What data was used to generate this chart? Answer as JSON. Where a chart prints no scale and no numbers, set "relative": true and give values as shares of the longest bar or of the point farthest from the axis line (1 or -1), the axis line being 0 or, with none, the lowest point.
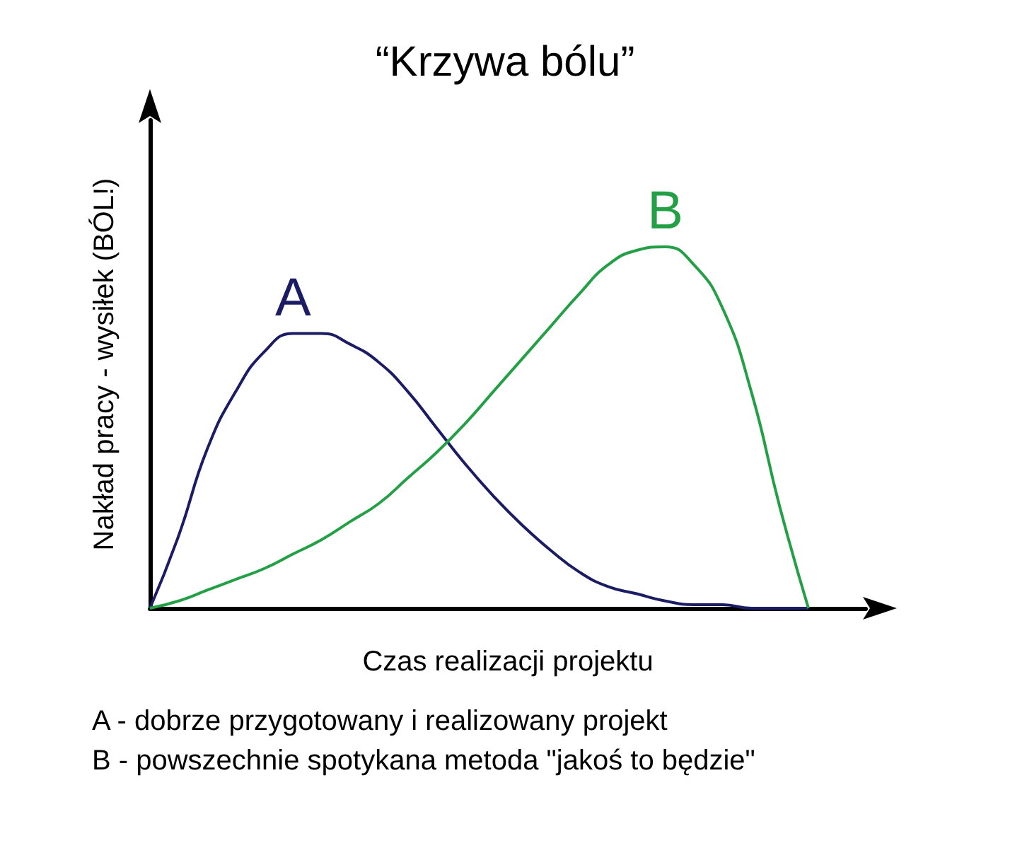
{
  "chart_data": {
    "type": "line",
    "title": "“Krzywa bólu”",
    "xlabel": "Czas realizacji projektu",
    "ylabel": "Nakład pracy - wysiłek (BÓL!)",
    "relative": true,
    "grid": false,
    "legend": false,
    "marker": "none",
    "line_style": "solid",
    "categories": [
      null,
      null,
      null,
      null,
      null,
      null,
      null,
      null,
      null,
      null,
      null,
      null,
      null,
      null,
      null,
      null,
      null,
      null,
      null,
      null,
      null,
      null,
      null,
      null,
      null,
      null
    ],
    "series": [
      {
        "name": "A",
        "color": "#1c1c64",
        "values": [
          0,
          0.2,
          0.44,
          0.6,
          0.71,
          0.76,
          0.76,
          0.73,
          0.68,
          0.6,
          0.5,
          0.4,
          0.31,
          0.23,
          0.16,
          0.1,
          0.06,
          0.04,
          0.02,
          0.01,
          0.01,
          0,
          0,
          0,
          null,
          null
        ]
      },
      {
        "name": "B",
        "color": "#23a045",
        "values": [
          0,
          0.02,
          0.05,
          0.08,
          0.11,
          0.15,
          0.19,
          0.24,
          0.29,
          0.36,
          0.43,
          0.51,
          0.6,
          0.69,
          0.78,
          0.87,
          0.95,
          0.99,
          1,
          0.95,
          0.83,
          0.6,
          0.28,
          0,
          null,
          null
        ]
      }
    ],
    "annotations": [
      "A - dobrze przygotowany i realizowany projekt",
      "B - powszechnie spotykana metoda \"jakoś to będzie\""
    ]
  }
}
